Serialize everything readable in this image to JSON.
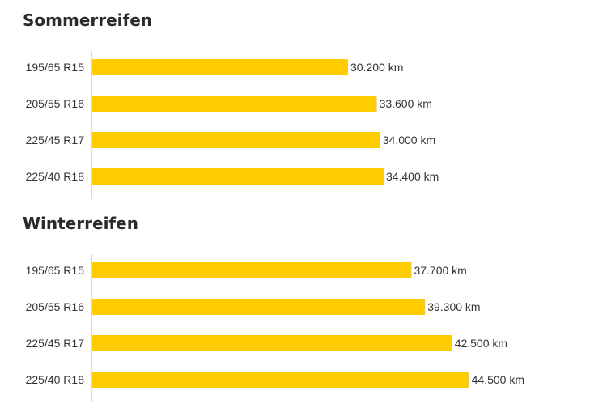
{
  "colors": {
    "bar": "#ffcc00",
    "axis": "#d9d9d9",
    "text": "#333333"
  },
  "chart_data": [
    {
      "type": "bar",
      "orientation": "horizontal",
      "title": "Sommerreifen",
      "categories": [
        "195/65 R15",
        "205/55 R16",
        "225/45 R17",
        "225/40 R18"
      ],
      "values": [
        30200,
        33600,
        34000,
        34400
      ],
      "value_labels": [
        "30.200 km",
        "33.600 km",
        "34.000 km",
        "34.400 km"
      ],
      "unit": "km",
      "xlim": [
        0,
        50000
      ]
    },
    {
      "type": "bar",
      "orientation": "horizontal",
      "title": "Winterreifen",
      "categories": [
        "195/65 R15",
        "205/55 R16",
        "225/45 R17",
        "225/40 R18"
      ],
      "values": [
        37700,
        39300,
        42500,
        44500
      ],
      "value_labels": [
        "37.700 km",
        "39.300 km",
        "42.500 km",
        "44.500 km"
      ],
      "unit": "km",
      "xlim": [
        0,
        50000
      ]
    }
  ]
}
